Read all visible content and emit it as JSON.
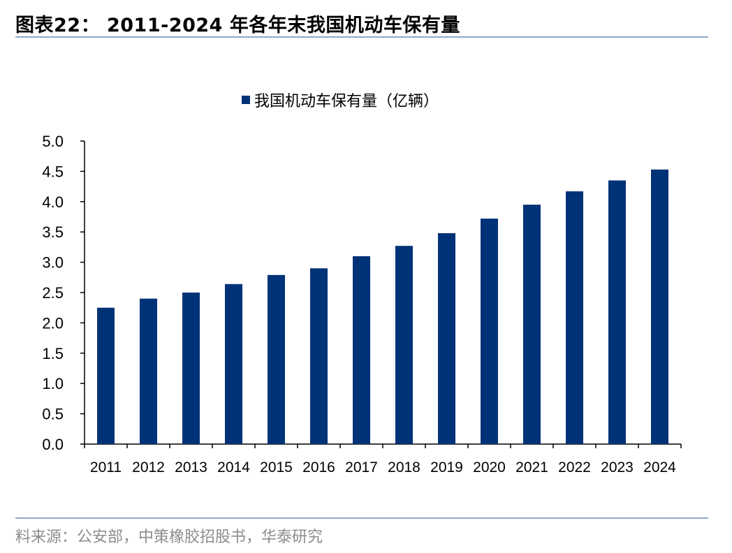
{
  "header": {
    "title": "图表22： 2011-2024 年各年末我国机动车保有量"
  },
  "footer": {
    "source": "料来源：公安部，中策橡胶招股书，华泰研究"
  },
  "chart_data": {
    "type": "bar",
    "categories": [
      "2011",
      "2012",
      "2013",
      "2014",
      "2015",
      "2016",
      "2017",
      "2018",
      "2019",
      "2020",
      "2021",
      "2022",
      "2023",
      "2024"
    ],
    "series": [
      {
        "name": "我国机动车保有量（亿辆）",
        "values": [
          2.25,
          2.4,
          2.5,
          2.64,
          2.79,
          2.9,
          3.1,
          3.27,
          3.48,
          3.72,
          3.95,
          4.17,
          4.35,
          4.53
        ],
        "color": "#003278"
      }
    ],
    "ylim": [
      0,
      5.0
    ],
    "yticks": [
      "0.0",
      "0.5",
      "1.0",
      "1.5",
      "2.0",
      "2.5",
      "3.0",
      "3.5",
      "4.0",
      "4.5",
      "5.0"
    ],
    "grid": false,
    "legend_position": "top-center"
  }
}
